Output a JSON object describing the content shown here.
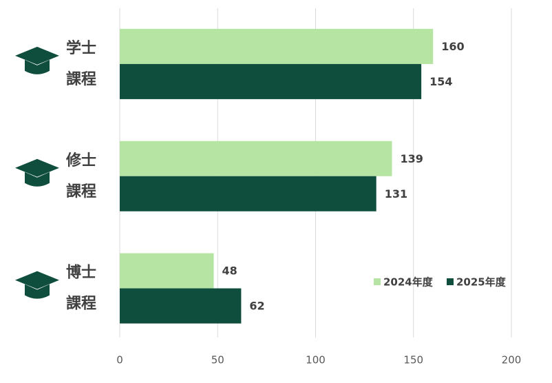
{
  "chart_data": {
    "type": "bar",
    "orientation": "horizontal",
    "categories": [
      [
        "学士",
        "課程"
      ],
      [
        "修士",
        "課程"
      ],
      [
        "博士",
        "課程"
      ]
    ],
    "series": [
      {
        "name": "2024年度",
        "color": "#b5e4a3",
        "values": [
          160,
          139,
          48
        ]
      },
      {
        "name": "2025年度",
        "color": "#0f4d3c",
        "values": [
          154,
          131,
          62
        ]
      }
    ],
    "xlim": [
      0,
      200
    ],
    "xticks": [
      0,
      50,
      100,
      150,
      200
    ],
    "grid": true,
    "legend": "right"
  }
}
